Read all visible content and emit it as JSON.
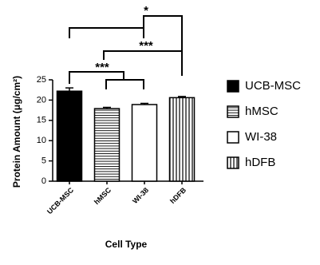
{
  "chart_data": {
    "type": "bar",
    "categories": [
      "UCB-MSC",
      "hMSC",
      "WI-38",
      "hDFB"
    ],
    "values": [
      22.2,
      17.9,
      18.9,
      20.6
    ],
    "errors": [
      0.8,
      0.3,
      0.3,
      0.3
    ],
    "patterns": [
      "solid",
      "horizontal",
      "none",
      "vertical"
    ],
    "color": "#000000",
    "ylim": [
      0,
      25
    ],
    "yticks": [
      0,
      5,
      10,
      15,
      20,
      25
    ],
    "ylabel": "Protein Amount (μg/cm²)",
    "xlabel": "Cell Type",
    "annotations": [
      "*",
      "***",
      "***"
    ]
  }
}
